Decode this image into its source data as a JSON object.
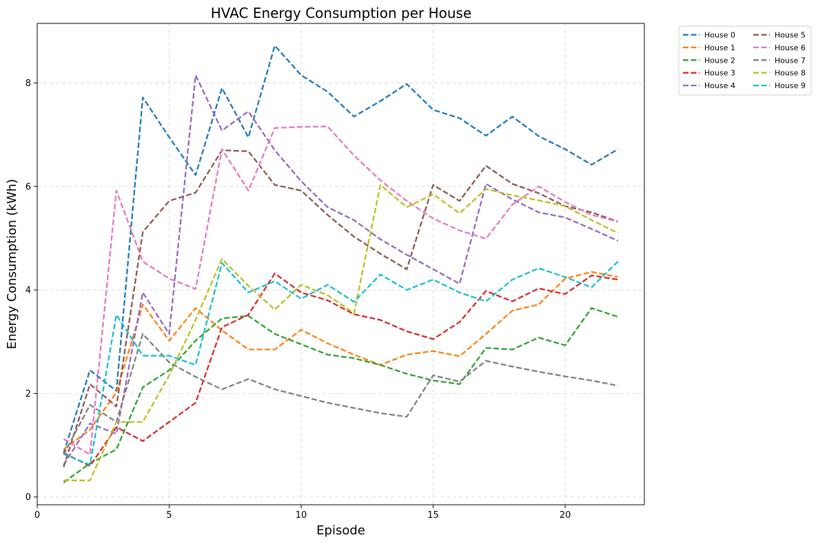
{
  "chart_data": {
    "type": "line",
    "title": "HVAC Energy Consumption per House",
    "xlabel": "Episode",
    "ylabel": "Energy Consumption (kWh)",
    "xlim": [
      0,
      23
    ],
    "ylim": [
      -0.15,
      9.15
    ],
    "xticks": [
      0,
      5,
      10,
      15,
      20
    ],
    "yticks": [
      0,
      2,
      4,
      6,
      8
    ],
    "grid": true,
    "line_style": "dashed",
    "legend_position": "outside-top-right",
    "legend_columns": 2,
    "x": [
      1,
      2,
      3,
      4,
      5,
      6,
      7,
      8,
      9,
      10,
      11,
      12,
      13,
      14,
      15,
      16,
      17,
      18,
      19,
      20,
      21,
      22
    ],
    "series": [
      {
        "name": "House 0",
        "color": "#1f77b4",
        "values": [
          0.85,
          2.45,
          2.05,
          7.72,
          6.95,
          6.22,
          7.9,
          6.95,
          8.72,
          8.15,
          7.83,
          7.35,
          7.65,
          7.98,
          7.48,
          7.32,
          6.98,
          7.35,
          6.97,
          6.72,
          6.42,
          6.72
        ]
      },
      {
        "name": "House 1",
        "color": "#ff7f0e",
        "values": [
          0.92,
          1.3,
          2.02,
          3.72,
          3.02,
          3.65,
          3.22,
          2.85,
          2.85,
          3.23,
          2.97,
          2.75,
          2.55,
          2.75,
          2.82,
          2.72,
          3.15,
          3.6,
          3.72,
          4.22,
          4.35,
          4.25
        ]
      },
      {
        "name": "House 2",
        "color": "#2ca02c",
        "values": [
          0.28,
          0.65,
          0.92,
          2.12,
          2.45,
          3.02,
          3.45,
          3.5,
          3.15,
          2.95,
          2.75,
          2.68,
          2.55,
          2.38,
          2.25,
          2.18,
          2.88,
          2.85,
          3.08,
          2.93,
          3.65,
          3.48
        ]
      },
      {
        "name": "House 3",
        "color": "#d62728",
        "values": [
          0.85,
          0.6,
          1.35,
          1.08,
          1.45,
          1.82,
          3.28,
          3.52,
          4.32,
          3.95,
          3.8,
          3.53,
          3.42,
          3.2,
          3.05,
          3.38,
          3.98,
          3.78,
          4.03,
          3.92,
          4.28,
          4.2
        ]
      },
      {
        "name": "House 4",
        "color": "#9467bd",
        "values": [
          0.62,
          1.42,
          1.22,
          3.95,
          3.15,
          8.15,
          7.08,
          7.45,
          6.7,
          6.1,
          5.6,
          5.35,
          4.98,
          4.68,
          4.4,
          4.12,
          6.05,
          5.75,
          5.5,
          5.4,
          5.18,
          4.95
        ]
      },
      {
        "name": "House 5",
        "color": "#8c564b",
        "values": [
          0.58,
          2.18,
          1.75,
          5.12,
          5.72,
          5.88,
          6.7,
          6.68,
          6.03,
          5.92,
          5.45,
          5.03,
          4.7,
          4.4,
          6.03,
          5.72,
          6.4,
          6.05,
          5.87,
          5.62,
          5.5,
          5.32
        ]
      },
      {
        "name": "House 6",
        "color": "#e377c2",
        "values": [
          1.12,
          0.82,
          5.92,
          4.55,
          4.22,
          4.02,
          6.72,
          5.92,
          7.13,
          7.15,
          7.16,
          6.6,
          6.12,
          5.72,
          5.38,
          5.15,
          4.99,
          5.65,
          6.0,
          5.7,
          5.45,
          5.32
        ]
      },
      {
        "name": "House 7",
        "color": "#7f7f7f",
        "values": [
          0.82,
          1.78,
          1.45,
          3.15,
          2.6,
          2.32,
          2.08,
          2.28,
          2.08,
          1.95,
          1.82,
          1.72,
          1.62,
          1.55,
          2.35,
          2.23,
          2.63,
          2.52,
          2.42,
          2.33,
          2.25,
          2.15
        ]
      },
      {
        "name": "House 8",
        "color": "#bcbd22",
        "values": [
          0.32,
          0.32,
          1.45,
          1.45,
          2.35,
          3.42,
          4.6,
          4.08,
          3.62,
          4.1,
          3.9,
          3.55,
          6.03,
          5.6,
          5.85,
          5.48,
          5.95,
          5.83,
          5.73,
          5.62,
          5.35,
          5.1
        ]
      },
      {
        "name": "House 9",
        "color": "#17becf",
        "values": [
          0.83,
          0.62,
          3.52,
          2.73,
          2.73,
          2.55,
          4.52,
          3.95,
          4.17,
          3.83,
          4.1,
          3.77,
          4.3,
          4.0,
          4.2,
          3.95,
          3.78,
          4.2,
          4.42,
          4.25,
          4.05,
          4.55
        ]
      }
    ]
  }
}
